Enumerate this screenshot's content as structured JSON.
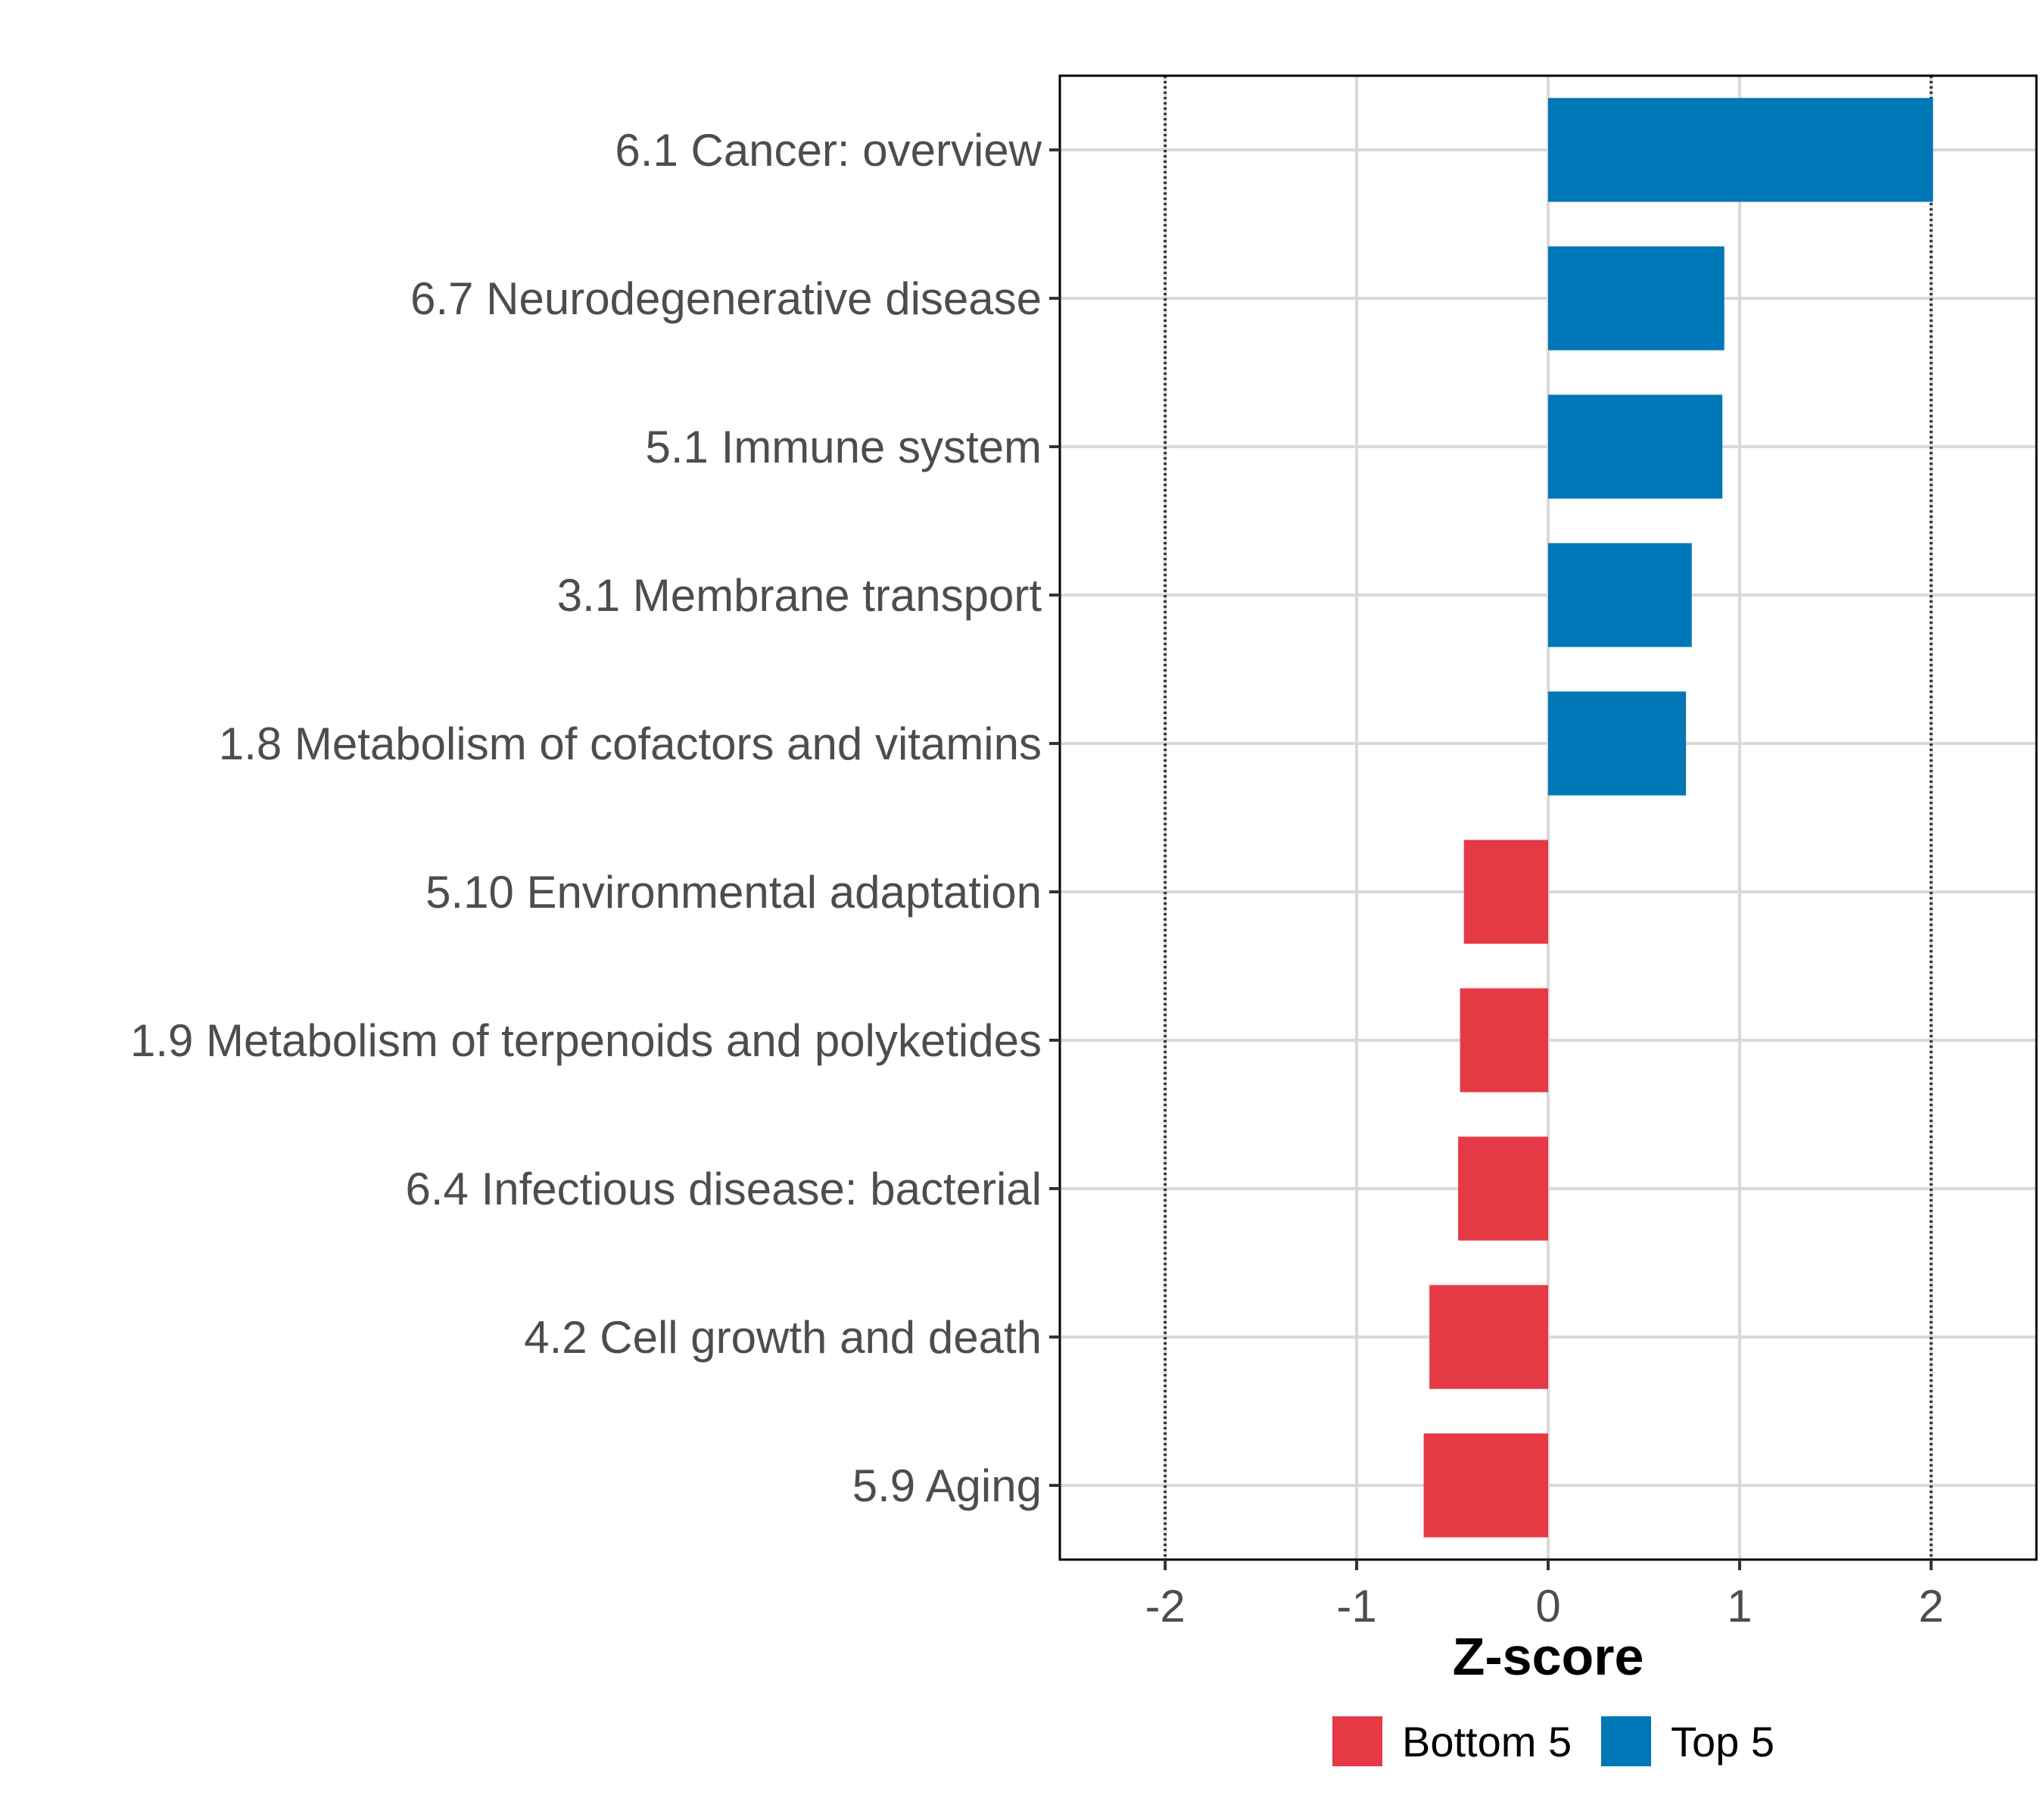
{
  "chart_data": {
    "type": "bar",
    "orientation": "horizontal",
    "title": "",
    "xlabel": "Z-score",
    "ylabel": "",
    "xlim": [
      -2.55,
      2.55
    ],
    "xticks": [
      -2,
      -1,
      0,
      1,
      2
    ],
    "xtick_labels": [
      "-2",
      "-1",
      "0",
      "1",
      "2"
    ],
    "reference_lines": [
      -2,
      2
    ],
    "grid": true,
    "categories": [
      "6.1 Cancer: overview",
      "6.7 Neurodegenerative disease",
      "5.1 Immune system",
      "3.1 Membrane transport",
      "1.8 Metabolism of cofactors and vitamins",
      "5.10 Environmental adaptation",
      "1.9 Metabolism of terpenoids and polyketides",
      "6.4 Infectious disease: bacterial",
      "4.2 Cell growth and death",
      "5.9 Aging"
    ],
    "values": [
      2.01,
      0.92,
      0.91,
      0.75,
      0.72,
      -0.44,
      -0.46,
      -0.47,
      -0.62,
      -0.65
    ],
    "groups": [
      "Top 5",
      "Top 5",
      "Top 5",
      "Top 5",
      "Top 5",
      "Bottom 5",
      "Bottom 5",
      "Bottom 5",
      "Bottom 5",
      "Bottom 5"
    ],
    "legend": {
      "position": "bottom",
      "entries": [
        {
          "label": "Bottom 5",
          "color": "#e63946"
        },
        {
          "label": "Top 5",
          "color": "#0077b6"
        }
      ]
    },
    "colors": {
      "Top 5": "#0077b6",
      "Bottom 5": "#e63946"
    }
  }
}
